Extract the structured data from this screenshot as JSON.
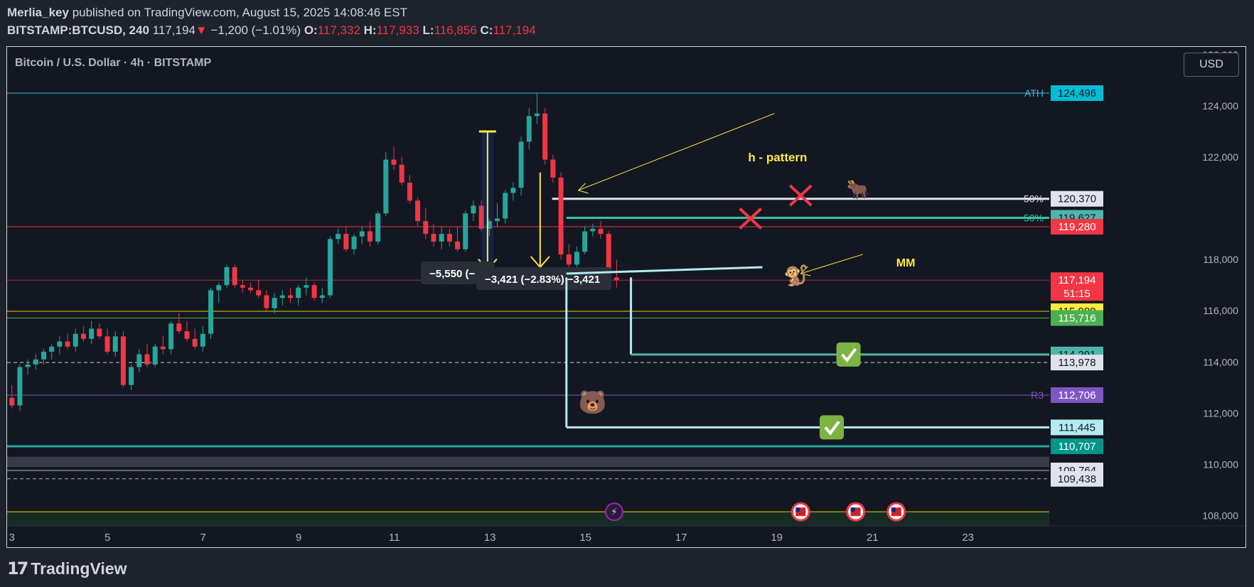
{
  "header": {
    "author": "Merlia_key",
    "published": "published on TradingView.com, August 15, 2025 14:08:46 EST",
    "symbol": "BITSTAMP:BTCUSD, 240",
    "last": "117,194",
    "change": "−1,200 (−1.01%)",
    "o_label": "O:",
    "o": "117,332",
    "h_label": "H:",
    "h": "117,933",
    "l_label": "L:",
    "l": "116,856",
    "c_label": "C:",
    "c": "117,194"
  },
  "chart_title": "Bitcoin / U.S. Dollar · 4h · BITSTAMP",
  "currency": "USD",
  "footer": {
    "brand": "TradingView"
  },
  "chart_data": {
    "type": "candlestick",
    "title": "Bitcoin / U.S. Dollar · 4h · BITSTAMP",
    "ylim": [
      107600,
      126300
    ],
    "xlim": [
      2.9,
      24.7
    ],
    "y_ticks": [
      "108,000",
      "110,000",
      "112,000",
      "114,000",
      "116,000",
      "118,000",
      "122,000",
      "124,000",
      "126,000"
    ],
    "x_ticks": [
      {
        "x": 3,
        "label": "3"
      },
      {
        "x": 5,
        "label": "5"
      },
      {
        "x": 7,
        "label": "7"
      },
      {
        "x": 9,
        "label": "9"
      },
      {
        "x": 11,
        "label": "11"
      },
      {
        "x": 13,
        "label": "13"
      },
      {
        "x": 15,
        "label": "15"
      },
      {
        "x": 17,
        "label": "17"
      },
      {
        "x": 19,
        "label": "19"
      },
      {
        "x": 21,
        "label": "21"
      },
      {
        "x": 23,
        "label": "23"
      }
    ],
    "candles_ohlc": [
      [
        112600,
        113100,
        112200,
        112300
      ],
      [
        112300,
        113900,
        112100,
        113800
      ],
      [
        113800,
        114100,
        113500,
        113900
      ],
      [
        113900,
        114300,
        113700,
        114100
      ],
      [
        114100,
        114500,
        113900,
        114400
      ],
      [
        114400,
        114700,
        114100,
        114600
      ],
      [
        114600,
        115000,
        114300,
        114800
      ],
      [
        114800,
        115100,
        114500,
        114600
      ],
      [
        114600,
        115300,
        114400,
        115100
      ],
      [
        115100,
        115400,
        114800,
        114900
      ],
      [
        114900,
        115600,
        114700,
        115300
      ],
      [
        115300,
        115500,
        114900,
        115000
      ],
      [
        115000,
        115300,
        114300,
        114400
      ],
      [
        114400,
        115200,
        114200,
        115000
      ],
      [
        115000,
        115200,
        113000,
        113100
      ],
      [
        113100,
        113900,
        112900,
        113800
      ],
      [
        113800,
        114500,
        113600,
        114300
      ],
      [
        114300,
        114700,
        113800,
        113900
      ],
      [
        113900,
        114700,
        113800,
        114600
      ],
      [
        114600,
        115000,
        114300,
        114500
      ],
      [
        114500,
        115600,
        114300,
        115500
      ],
      [
        115500,
        115900,
        115100,
        115200
      ],
      [
        115200,
        115600,
        114800,
        114900
      ],
      [
        114900,
        115300,
        114500,
        114600
      ],
      [
        114600,
        115400,
        114400,
        115100
      ],
      [
        115100,
        116900,
        114900,
        116800
      ],
      [
        116800,
        117100,
        116300,
        117000
      ],
      [
        117000,
        117800,
        116900,
        117700
      ],
      [
        117700,
        117800,
        116900,
        117000
      ],
      [
        117000,
        117200,
        116700,
        116900
      ],
      [
        116900,
        117100,
        116700,
        116800
      ],
      [
        116800,
        117200,
        116500,
        116600
      ],
      [
        116600,
        116800,
        116000,
        116100
      ],
      [
        116100,
        116700,
        115900,
        116500
      ],
      [
        116500,
        116800,
        116200,
        116600
      ],
      [
        116600,
        116900,
        116300,
        116500
      ],
      [
        116500,
        117000,
        116200,
        116900
      ],
      [
        116900,
        117300,
        116600,
        117000
      ],
      [
        117000,
        117100,
        116400,
        116500
      ],
      [
        116500,
        116900,
        116300,
        116600
      ],
      [
        116600,
        118900,
        116500,
        118800
      ],
      [
        118800,
        119200,
        118600,
        119000
      ],
      [
        119000,
        119300,
        118300,
        118400
      ],
      [
        118400,
        119000,
        118200,
        118900
      ],
      [
        118900,
        119300,
        118600,
        119100
      ],
      [
        119100,
        119500,
        118500,
        118700
      ],
      [
        118700,
        119900,
        118600,
        119800
      ],
      [
        119800,
        122200,
        119700,
        121900
      ],
      [
        121900,
        122400,
        121500,
        121700
      ],
      [
        121700,
        122000,
        120900,
        121000
      ],
      [
        121000,
        121300,
        120200,
        120300
      ],
      [
        120300,
        120400,
        119300,
        119500
      ],
      [
        119500,
        120000,
        118800,
        119000
      ],
      [
        119000,
        119400,
        118500,
        118700
      ],
      [
        118700,
        119300,
        118400,
        119000
      ],
      [
        119000,
        119200,
        118500,
        118700
      ],
      [
        118700,
        119300,
        118300,
        118400
      ],
      [
        118400,
        119900,
        118300,
        119800
      ],
      [
        119800,
        120300,
        119500,
        120100
      ],
      [
        120100,
        120300,
        119100,
        119200
      ],
      [
        119200,
        119600,
        118900,
        119500
      ],
      [
        119500,
        120200,
        119300,
        119600
      ],
      [
        119600,
        120700,
        119400,
        120600
      ],
      [
        120600,
        121000,
        120300,
        120800
      ],
      [
        120800,
        122800,
        120500,
        122600
      ],
      [
        122600,
        123900,
        122300,
        123600
      ],
      [
        123600,
        124496,
        123300,
        123700
      ],
      [
        123700,
        123900,
        121700,
        121900
      ],
      [
        121900,
        122100,
        121000,
        121200
      ],
      [
        121200,
        121400,
        118000,
        118200
      ],
      [
        118200,
        118600,
        117400,
        117800
      ],
      [
        117800,
        118500,
        117500,
        118300
      ],
      [
        118300,
        119300,
        118200,
        119100
      ],
      [
        119100,
        119400,
        118900,
        119200
      ],
      [
        119200,
        119500,
        118800,
        119000
      ],
      [
        119000,
        119100,
        117100,
        117300
      ],
      [
        117300,
        118000,
        116900,
        117194
      ]
    ],
    "horizontal_lines": [
      {
        "price": 124496,
        "label": "ATH",
        "color": "#3bbbd6"
      },
      {
        "price": 120370,
        "label": "50%",
        "color": "#e0e3eb"
      },
      {
        "price": 119627,
        "label": "50%",
        "color": "#3bbfa8"
      },
      {
        "price": 119280,
        "color": "#f23645"
      },
      {
        "price": 117194,
        "color": "#f23645"
      },
      {
        "price": 115980,
        "color": "#e4d400"
      },
      {
        "price": 115716,
        "color": "#4caf50"
      },
      {
        "price": 113978,
        "color": "#d1d4dc"
      },
      {
        "price": 112706,
        "label": "R3",
        "color": "#7e57c2"
      },
      {
        "price": 110707,
        "color": "#26a69a"
      },
      {
        "price": 109764,
        "color": "#b2b5be"
      },
      {
        "price": 109438,
        "color": "#b2b5be"
      },
      {
        "price": 108150,
        "color": "#e4d400"
      }
    ],
    "price_badges": [
      {
        "price": 124496,
        "text": "124,496",
        "bg": "#00bcd4",
        "fg": "#131722"
      },
      {
        "price": 120370,
        "text": "120,370",
        "bg": "#e0e3eb",
        "fg": "#131722"
      },
      {
        "price": 119627,
        "text": "119,627",
        "bg": "#4db6ac",
        "fg": "#131722"
      },
      {
        "price": 119280,
        "text": "119,280",
        "bg": "#f23645",
        "fg": "#ffffff"
      },
      {
        "price": 117194,
        "text": "117,194",
        "bg": "#f23645",
        "fg": "#ffffff",
        "sub": "51:15"
      },
      {
        "price": 115980,
        "text": "115,980",
        "bg": "#ffeb3b",
        "fg": "#131722"
      },
      {
        "price": 115716,
        "text": "115,716",
        "bg": "#4caf50",
        "fg": "#ffffff"
      },
      {
        "price": 114291,
        "text": "114,291",
        "bg": "#4db6ac",
        "fg": "#131722"
      },
      {
        "price": 113978,
        "text": "113,978",
        "bg": "#e0e3eb",
        "fg": "#131722"
      },
      {
        "price": 112706,
        "text": "112,706",
        "bg": "#7e57c2",
        "fg": "#ffffff"
      },
      {
        "price": 111445,
        "text": "111,445",
        "bg": "#b2ebf2",
        "fg": "#131722"
      },
      {
        "price": 110707,
        "text": "110,707",
        "bg": "#009688",
        "fg": "#ffffff"
      },
      {
        "price": 109764,
        "text": "109,764",
        "bg": "#e0e3eb",
        "fg": "#131722"
      },
      {
        "price": 109438,
        "text": "109,438",
        "bg": "#e0e3eb",
        "fg": "#131722"
      }
    ],
    "measures": [
      {
        "text": "−5,550 (−",
        "x": 12.95,
        "top": 123000,
        "bottom": 117600
      },
      {
        "text": "−3,421 (−2.83%) −3,421",
        "x": 14.05,
        "top": 121400,
        "bottom": 117700
      }
    ],
    "annotations": {
      "h_pattern": "h - pattern",
      "mm": "MM",
      "bull_icon": "bull-icon",
      "bear_icon": "bear-icon",
      "monkey_icon": "monkey-icon",
      "cross_icon": "red-x-icon",
      "check_icon": "green-check-icon",
      "flag_icon": "us-flag-icon",
      "event_icon": "lightning-icon"
    }
  }
}
